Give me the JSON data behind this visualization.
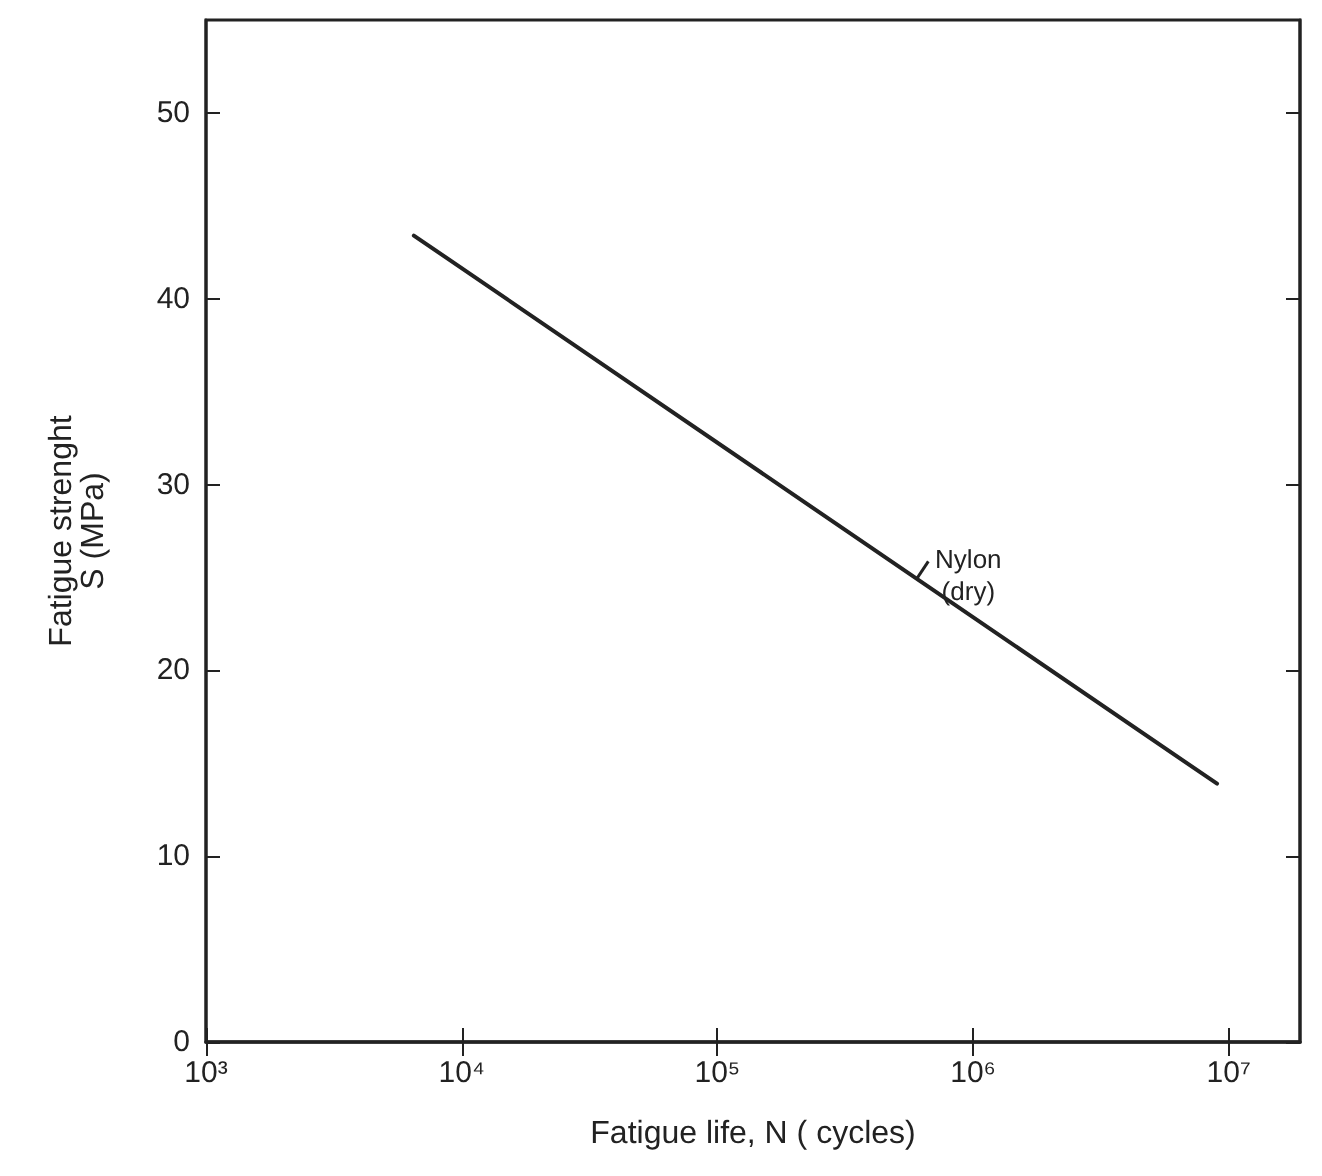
{
  "chart_data": {
    "type": "line",
    "xlabel": "Fatigue life, N ( cycles)",
    "ylabel": "Fatigue strenght\nS (MPa)",
    "log": "x",
    "xlim": [
      1000,
      19000000
    ],
    "ylim": [
      0,
      55
    ],
    "xticks": [
      {
        "value": 1000,
        "label": "10³"
      },
      {
        "value": 10000,
        "label": "10⁴"
      },
      {
        "value": 100000,
        "label": "10⁵"
      },
      {
        "value": 1000000,
        "label": "10⁶"
      },
      {
        "value": 10000000,
        "label": "10⁷"
      }
    ],
    "yticks": [
      0,
      10,
      20,
      30,
      40,
      50
    ],
    "series": [
      {
        "color": "#222222",
        "x": [
          6500,
          9000000
        ],
        "values": [
          43.4,
          13.9
        ]
      }
    ],
    "annotations": [
      {
        "text": "Nylon\n(dry)",
        "x": 600000,
        "y": 24.9
      }
    ],
    "grid": false,
    "marker": "none",
    "line_style": "solid"
  }
}
